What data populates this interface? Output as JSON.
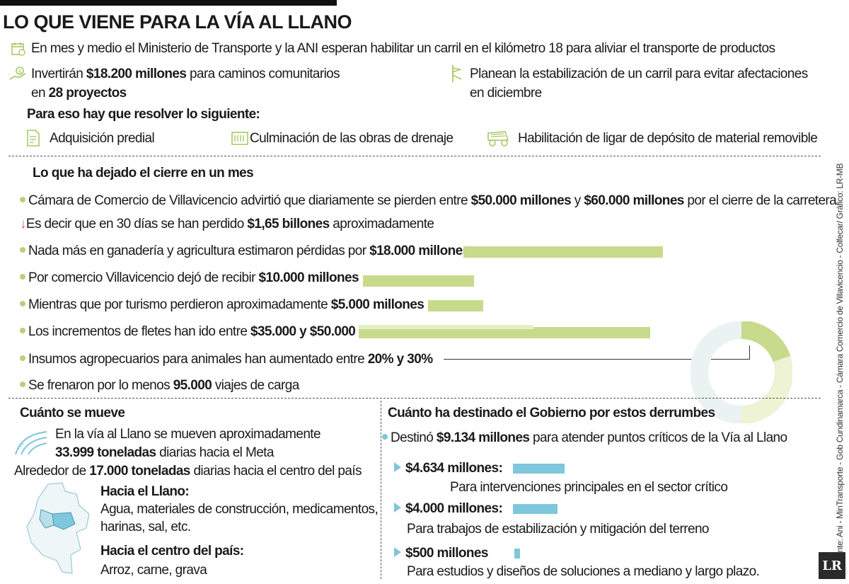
{
  "header": {
    "title": "LO QUE VIENE PARA LA VÍA AL LLANO",
    "intro": "En mes y medio el Ministerio de Transporte y la ANI esperan habilitar un carril en el kilómetro 18 para aliviar el transporte de productos"
  },
  "invest": {
    "pre": "Invertirán ",
    "amount": "$18.200 millones",
    "post": " para caminos comunitarios",
    "line2_pre": "en ",
    "projects": "28 proyectos"
  },
  "plan": {
    "line1": "Planean la estabilización de un carril para evitar afectaciones",
    "line2": "en diciembre"
  },
  "resolve": {
    "title": "Para eso hay que resolver lo siguiente:",
    "items": [
      "Adquisición predial",
      "Culminación de las obras de drenaje",
      "Habilitación de ligar de depósito de material removible"
    ]
  },
  "source": "Fuente: Ani - MinTransporte - Gob Cundinamarca - Cámara Comercio de Villavicencio - Colfecar/ Gráfico: LR-MB",
  "cierre": {
    "title": "Lo que ha dejado el cierre en un mes",
    "camara": {
      "pre": "Cámara de Comercio de Villavicencio advirtió que diariamente se pierden entre ",
      "v1": "$50.000 millones",
      "mid": " y ",
      "v2": "$60.000 millones",
      "post": " por el cierre de la carretera"
    },
    "thirty": {
      "pre": "Es decir que en 30 días se han perdido ",
      "v": "$1,65 billones",
      "post": " aproximadamente"
    },
    "rows": [
      {
        "pre": "Nada más en ganadería y agricultura estimaron pérdidas por ",
        "v": "$18.000 millones"
      },
      {
        "pre": "Por comercio Villavicencio dejó de recibir ",
        "v": "$10.000 millones"
      },
      {
        "pre": "Mientras que por turismo perdieron aproximadamente ",
        "v": "$5.000 millones"
      },
      {
        "pre": "Los incrementos de fletes han ido entre ",
        "v": "$35.000 y $50.000"
      },
      {
        "pre": "Insumos agropecuarios para animales han aumentado entre ",
        "v": "20% y 30%"
      },
      {
        "pre": "Se frenaron por lo menos ",
        "v": "95.000",
        "post": " viajes de carga"
      }
    ]
  },
  "mueve": {
    "title": "Cuánto se mueve",
    "l1": "En la vía al Llano se mueven aproximadamente",
    "l2_v": "33.999 toneladas",
    "l2_post": " diarias hacia el Meta",
    "l3_pre": "Alrededor de ",
    "l3_v": "17.000 toneladas",
    "l3_post": " diarias hacia el centro del país",
    "llano_title": "Hacia el Llano:",
    "llano_l1": "Agua, materiales de construcción, medicamentos,",
    "llano_l2": "harinas, sal, etc.",
    "centro_title": "Hacia el centro del país:",
    "centro_l1": "Arroz, carne, grava"
  },
  "gobierno": {
    "title": "Cuánto ha destinado el Gobierno por estos derrumbes",
    "dest_pre": "Destinó ",
    "dest_v": "$9.134 millones",
    "dest_post": " para atender puntos críticos de la Vía al Llano",
    "items": [
      {
        "v": "$4.634 millones:",
        "desc": "Para intervenciones principales en el sector crítico",
        "amount": 4634
      },
      {
        "v": "$4.000 millones:",
        "desc": "Para trabajos de estabilización y mitigación del terreno",
        "amount": 4000
      },
      {
        "v": "$500 millones",
        "desc": "Para estudios y diseños de soluciones a mediano y largo plazo.",
        "amount": 500
      }
    ]
  },
  "logo": "LR",
  "colors": {
    "green": "#c8da8c",
    "blue": "#7ec7dc",
    "logo_bg": "#2a2a2a"
  }
}
